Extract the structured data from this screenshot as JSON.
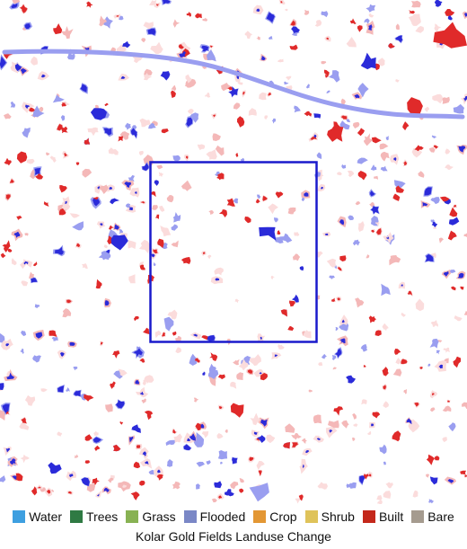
{
  "map": {
    "title": "Kolar Gold Fields Landuse Change",
    "change_colors": {
      "loss_strong": "#2b2bd9",
      "loss_light": "#9a9ef0",
      "gain_strong": "#e02a2a",
      "gain_light": "#f4b8b8",
      "gain_pale": "#fbdcdc",
      "background": "#ffffff"
    },
    "highlight_box": {
      "label": "",
      "stroke": "#1a1acc"
    }
  },
  "legend": {
    "items": [
      {
        "label": "Water",
        "color": "#3e9fe0"
      },
      {
        "label": "Trees",
        "color": "#2f7a43"
      },
      {
        "label": "Grass",
        "color": "#88b253"
      },
      {
        "label": "Flooded",
        "color": "#7a87c6"
      },
      {
        "label": "Crop",
        "color": "#e39734"
      },
      {
        "label": "Shrub",
        "color": "#dfc35a"
      },
      {
        "label": "Built",
        "color": "#c4281b"
      },
      {
        "label": "Bare",
        "color": "#a59b8f"
      }
    ]
  }
}
